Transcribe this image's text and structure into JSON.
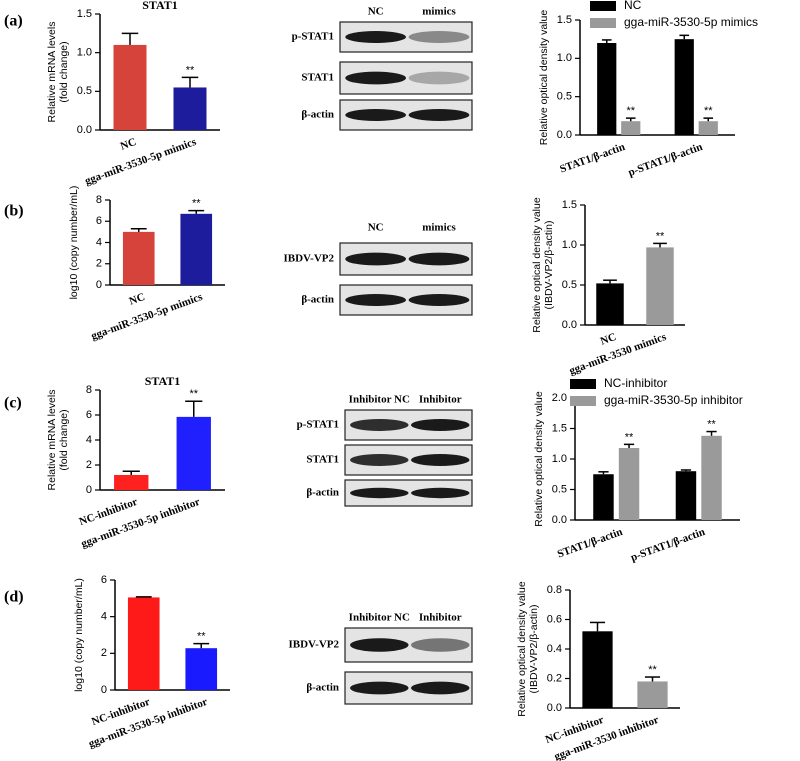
{
  "panel_labels": [
    "(a)",
    "(b)",
    "(c)",
    "(d)"
  ],
  "chart_data": [
    {
      "type": "bar",
      "title": "STAT1",
      "ylabel": [
        "Relative mRNA levels",
        "(fold change)"
      ],
      "categories": [
        "NC",
        "gga-miR-3530-5p mimics"
      ],
      "values": [
        1.1,
        0.55
      ],
      "errors": [
        0.15,
        0.13
      ],
      "colors": [
        "#d6433a",
        "#1c1c9c"
      ],
      "significance": [
        null,
        "**"
      ],
      "ylim": [
        0,
        1.5
      ],
      "yticks": [
        {
          "value": 0,
          "label": "0.0"
        },
        0.5,
        {
          "value": 1,
          "label": "1.0"
        },
        1.5
      ]
    },
    {
      "type": "grouped-bar",
      "ylabel": [
        "Relative optical density value"
      ],
      "categories": [
        "STAT1/β-actin",
        "p-STAT1/β-actin"
      ],
      "series": [
        {
          "name": "NC",
          "color": "#000000",
          "values": [
            1.2,
            1.25
          ],
          "errors": [
            0.04,
            0.05
          ],
          "significance": [
            null,
            null
          ]
        },
        {
          "name": "gga-miR-3530-5p mimics",
          "color": "#9a9a9a",
          "values": [
            0.18,
            0.18
          ],
          "errors": [
            0.04,
            0.04
          ],
          "significance": [
            "**",
            "**"
          ]
        }
      ],
      "ylim": [
        0,
        1.5
      ],
      "yticks": [
        {
          "value": 0,
          "label": "0.0"
        },
        0.5,
        {
          "value": 1,
          "label": "1.0"
        },
        1.5
      ]
    },
    {
      "type": "bar",
      "ylabel": [
        "log10 (copy number/mL)"
      ],
      "categories": [
        "NC",
        "gga-miR-3530-5p mimics"
      ],
      "values": [
        5.0,
        6.7
      ],
      "errors": [
        0.3,
        0.3
      ],
      "colors": [
        "#d6433a",
        "#1c1c9c"
      ],
      "significance": [
        null,
        "**"
      ],
      "ylim": [
        0,
        8
      ],
      "yticks": [
        0,
        2,
        4,
        6,
        8
      ]
    },
    {
      "type": "bar",
      "ylabel": [
        "Relative optical density value",
        "(IBDV-VP2/β-actin)"
      ],
      "categories": [
        "NC",
        "gga-miR-3530 mimics"
      ],
      "values": [
        0.52,
        0.97
      ],
      "errors": [
        0.04,
        0.05
      ],
      "colors": [
        "#000000",
        "#9a9a9a"
      ],
      "significance": [
        null,
        "**"
      ],
      "ylim": [
        0,
        1.5
      ],
      "yticks": [
        {
          "value": 0,
          "label": "0.0"
        },
        0.5,
        {
          "value": 1,
          "label": "1.0"
        },
        1.5
      ]
    },
    {
      "type": "bar",
      "title": "STAT1",
      "ylabel": [
        "Relative  mRNA levels",
        "(fold change)"
      ],
      "categories": [
        "NC-inhibitor",
        "gga-miR-3530-5p inhibitor"
      ],
      "values": [
        1.2,
        5.85
      ],
      "errors": [
        0.3,
        1.25
      ],
      "colors": [
        "#ff2020",
        "#2020ff"
      ],
      "significance": [
        null,
        "**"
      ],
      "ylim": [
        0,
        8
      ],
      "yticks": [
        0,
        2,
        4,
        6,
        8
      ]
    },
    {
      "type": "grouped-bar",
      "ylabel": [
        "Relative optical density value"
      ],
      "categories": [
        "STAT1/β-actin",
        "p-STAT1/β-actin"
      ],
      "series": [
        {
          "name": "NC-inhibitor",
          "color": "#000000",
          "values": [
            0.75,
            0.8
          ],
          "errors": [
            0.04,
            0.02
          ],
          "significance": [
            null,
            null
          ]
        },
        {
          "name": "gga-miR-3530-5p inhibitor",
          "color": "#9a9a9a",
          "values": [
            1.18,
            1.38
          ],
          "errors": [
            0.06,
            0.07
          ],
          "significance": [
            "**",
            "**"
          ]
        }
      ],
      "ylim": [
        0,
        2
      ],
      "yticks": [
        {
          "value": 0,
          "label": "0.0"
        },
        0.5,
        {
          "value": 1,
          "label": "1.0"
        },
        1.5,
        {
          "value": 2,
          "label": "2.0"
        }
      ]
    },
    {
      "type": "bar",
      "ylabel": [
        "log10 (copy number/mL)"
      ],
      "categories": [
        "NC-inhibitor",
        "gga-miR-3530-5p inhibitor"
      ],
      "values": [
        5.05,
        2.28
      ],
      "errors": [
        0.03,
        0.25
      ],
      "colors": [
        "#ff1a1a",
        "#1a1aff"
      ],
      "significance": [
        null,
        "**"
      ],
      "ylim": [
        0,
        6
      ],
      "yticks": [
        0,
        2,
        4,
        6
      ]
    },
    {
      "type": "bar",
      "ylabel": [
        "Relative optical density value",
        "(IBDV-VP2/β-actin)"
      ],
      "categories": [
        "NC-inhibitor",
        "gga-miR-3530 inhibitor"
      ],
      "values": [
        0.52,
        0.18
      ],
      "errors": [
        0.06,
        0.03
      ],
      "colors": [
        "#000000",
        "#9a9a9a"
      ],
      "significance": [
        null,
        "**"
      ],
      "ylim": [
        0,
        0.8
      ],
      "yticks": [
        {
          "value": 0,
          "label": "0.0"
        },
        0.2,
        0.4,
        0.6,
        0.8
      ]
    }
  ],
  "blots": [
    {
      "columns": [
        "NC",
        "mimics"
      ],
      "rows": [
        "p-STAT1",
        "STAT1",
        "β-actin"
      ]
    },
    {
      "columns": [
        "NC",
        "mimics"
      ],
      "rows": [
        "IBDV-VP2",
        "β-actin"
      ]
    },
    {
      "columns": [
        "Inhibitor NC",
        "Inhibitor"
      ],
      "rows": [
        "p-STAT1",
        "STAT1",
        "β-actin"
      ]
    },
    {
      "columns": [
        "Inhibitor NC",
        "Inhibitor"
      ],
      "rows": [
        "IBDV-VP2",
        "β-actin"
      ]
    }
  ]
}
